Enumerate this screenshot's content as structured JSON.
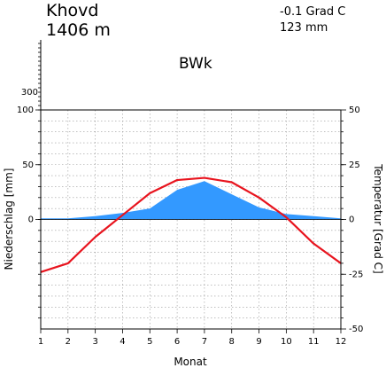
{
  "station": {
    "name": "Khovd",
    "elevation": "1406 m"
  },
  "summary": {
    "mean_temp": "-0.1 Grad C",
    "annual_precip": "123 mm"
  },
  "climate_class": "BWk",
  "colors": {
    "precip_fill": "#3399ff",
    "temp_line": "#e8141e",
    "grid": "#999999"
  },
  "chart_data": {
    "type": "line",
    "x": [
      1,
      2,
      3,
      4,
      5,
      6,
      7,
      8,
      9,
      10,
      11,
      12
    ],
    "xlabel": "Monat",
    "ylabel_left": "Niederschlag [mm]",
    "ylabel_right": "Temperatur [Grad C]",
    "ylim_precip": [
      -100,
      100
    ],
    "ylim_temp": [
      -50,
      50
    ],
    "precip_ticks": [
      "0",
      "50",
      "100"
    ],
    "precip_upper_ticks": [
      "300"
    ],
    "temp_ticks": [
      "-50",
      "-25",
      "0",
      "25",
      "50"
    ],
    "series": [
      {
        "type": "area",
        "axis": "left",
        "values": [
          1,
          1,
          3,
          6,
          10,
          27,
          35,
          23,
          11,
          5,
          3,
          1
        ]
      },
      {
        "type": "line",
        "axis": "right",
        "values": [
          -24,
          -20,
          -8,
          2,
          12,
          18,
          19,
          17,
          10,
          1,
          -11,
          -20
        ]
      }
    ]
  }
}
